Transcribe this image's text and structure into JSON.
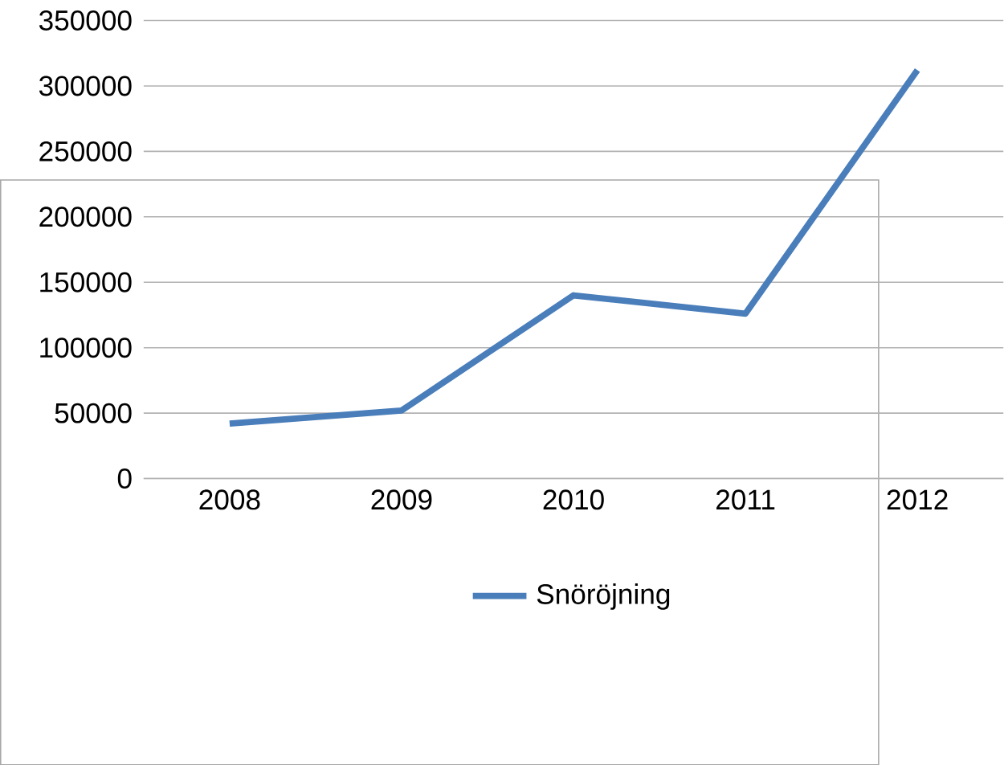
{
  "chart_data": {
    "type": "line",
    "categories": [
      "2008",
      "2009",
      "2010",
      "2011",
      "2012"
    ],
    "series": [
      {
        "name": "Snöröjning",
        "color": "#4a7ebb",
        "values": [
          42000,
          52000,
          140000,
          126000,
          312000
        ]
      }
    ],
    "ylim": [
      0,
      350000
    ],
    "yticks": [
      0,
      50000,
      100000,
      150000,
      200000,
      250000,
      300000,
      350000
    ],
    "grid": "y",
    "legend": "bottom",
    "marker": "none",
    "line_style": "solid"
  }
}
